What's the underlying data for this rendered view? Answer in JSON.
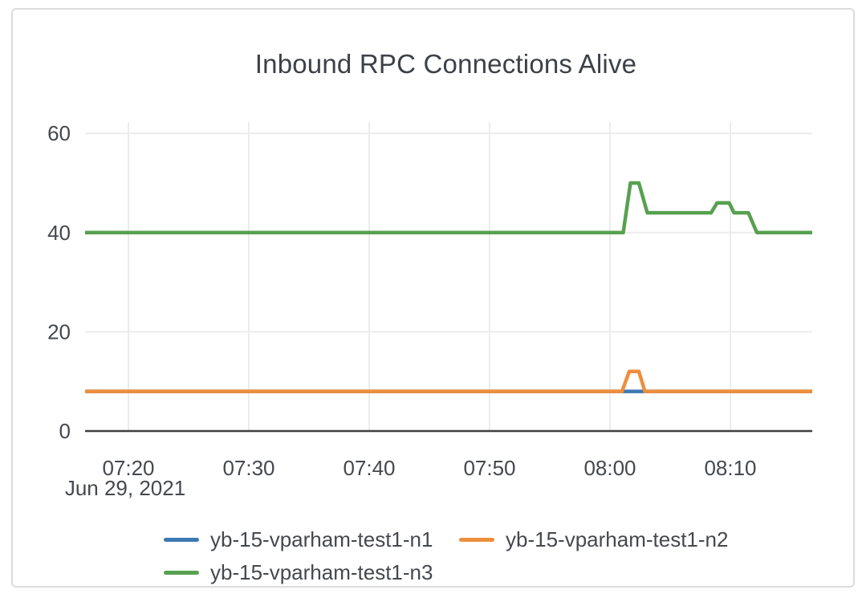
{
  "card": {
    "background": "#ffffff",
    "border_color": "#dcdcdc"
  },
  "chart_data": {
    "type": "line",
    "title": "Inbound RPC Connections Alive",
    "title_color": "#3d4148",
    "x_axis": {
      "kind": "time",
      "date_label": "Jun 29, 2021",
      "range_minutes": [
        436.4,
        496.8
      ],
      "ticks": [
        {
          "minute": 440,
          "label": "07:20"
        },
        {
          "minute": 450,
          "label": "07:30"
        },
        {
          "minute": 460,
          "label": "07:40"
        },
        {
          "minute": 470,
          "label": "07:50"
        },
        {
          "minute": 480,
          "label": "08:00"
        },
        {
          "minute": 490,
          "label": "08:10"
        }
      ]
    },
    "y_axis": {
      "range": [
        0,
        62.3
      ],
      "ticks": [
        0,
        20,
        40,
        60
      ]
    },
    "grid": {
      "show": true,
      "color": "#ececec",
      "zero_axis_color": "#3f3f3f",
      "tick_label_color": "#45484d"
    },
    "legend_position": "bottom",
    "series": [
      {
        "name": "yb-15-vparham-test1-n1",
        "color": "#3d79b3",
        "points": [
          [
            436.4,
            8
          ],
          [
            496.8,
            8
          ]
        ]
      },
      {
        "name": "yb-15-vparham-test1-n2",
        "color": "#ee8e3d",
        "points": [
          [
            436.4,
            8
          ],
          [
            481.0,
            8
          ],
          [
            481.6,
            12
          ],
          [
            482.4,
            12
          ],
          [
            482.9,
            8
          ],
          [
            496.8,
            8
          ]
        ]
      },
      {
        "name": "yb-15-vparham-test1-n3",
        "color": "#57a150",
        "points": [
          [
            436.4,
            40
          ],
          [
            481.1,
            40
          ],
          [
            481.7,
            50
          ],
          [
            482.4,
            50
          ],
          [
            483.1,
            44
          ],
          [
            488.4,
            44
          ],
          [
            488.9,
            46
          ],
          [
            489.9,
            46
          ],
          [
            490.3,
            44
          ],
          [
            491.5,
            44
          ],
          [
            492.2,
            40
          ],
          [
            496.8,
            40
          ]
        ]
      }
    ]
  }
}
